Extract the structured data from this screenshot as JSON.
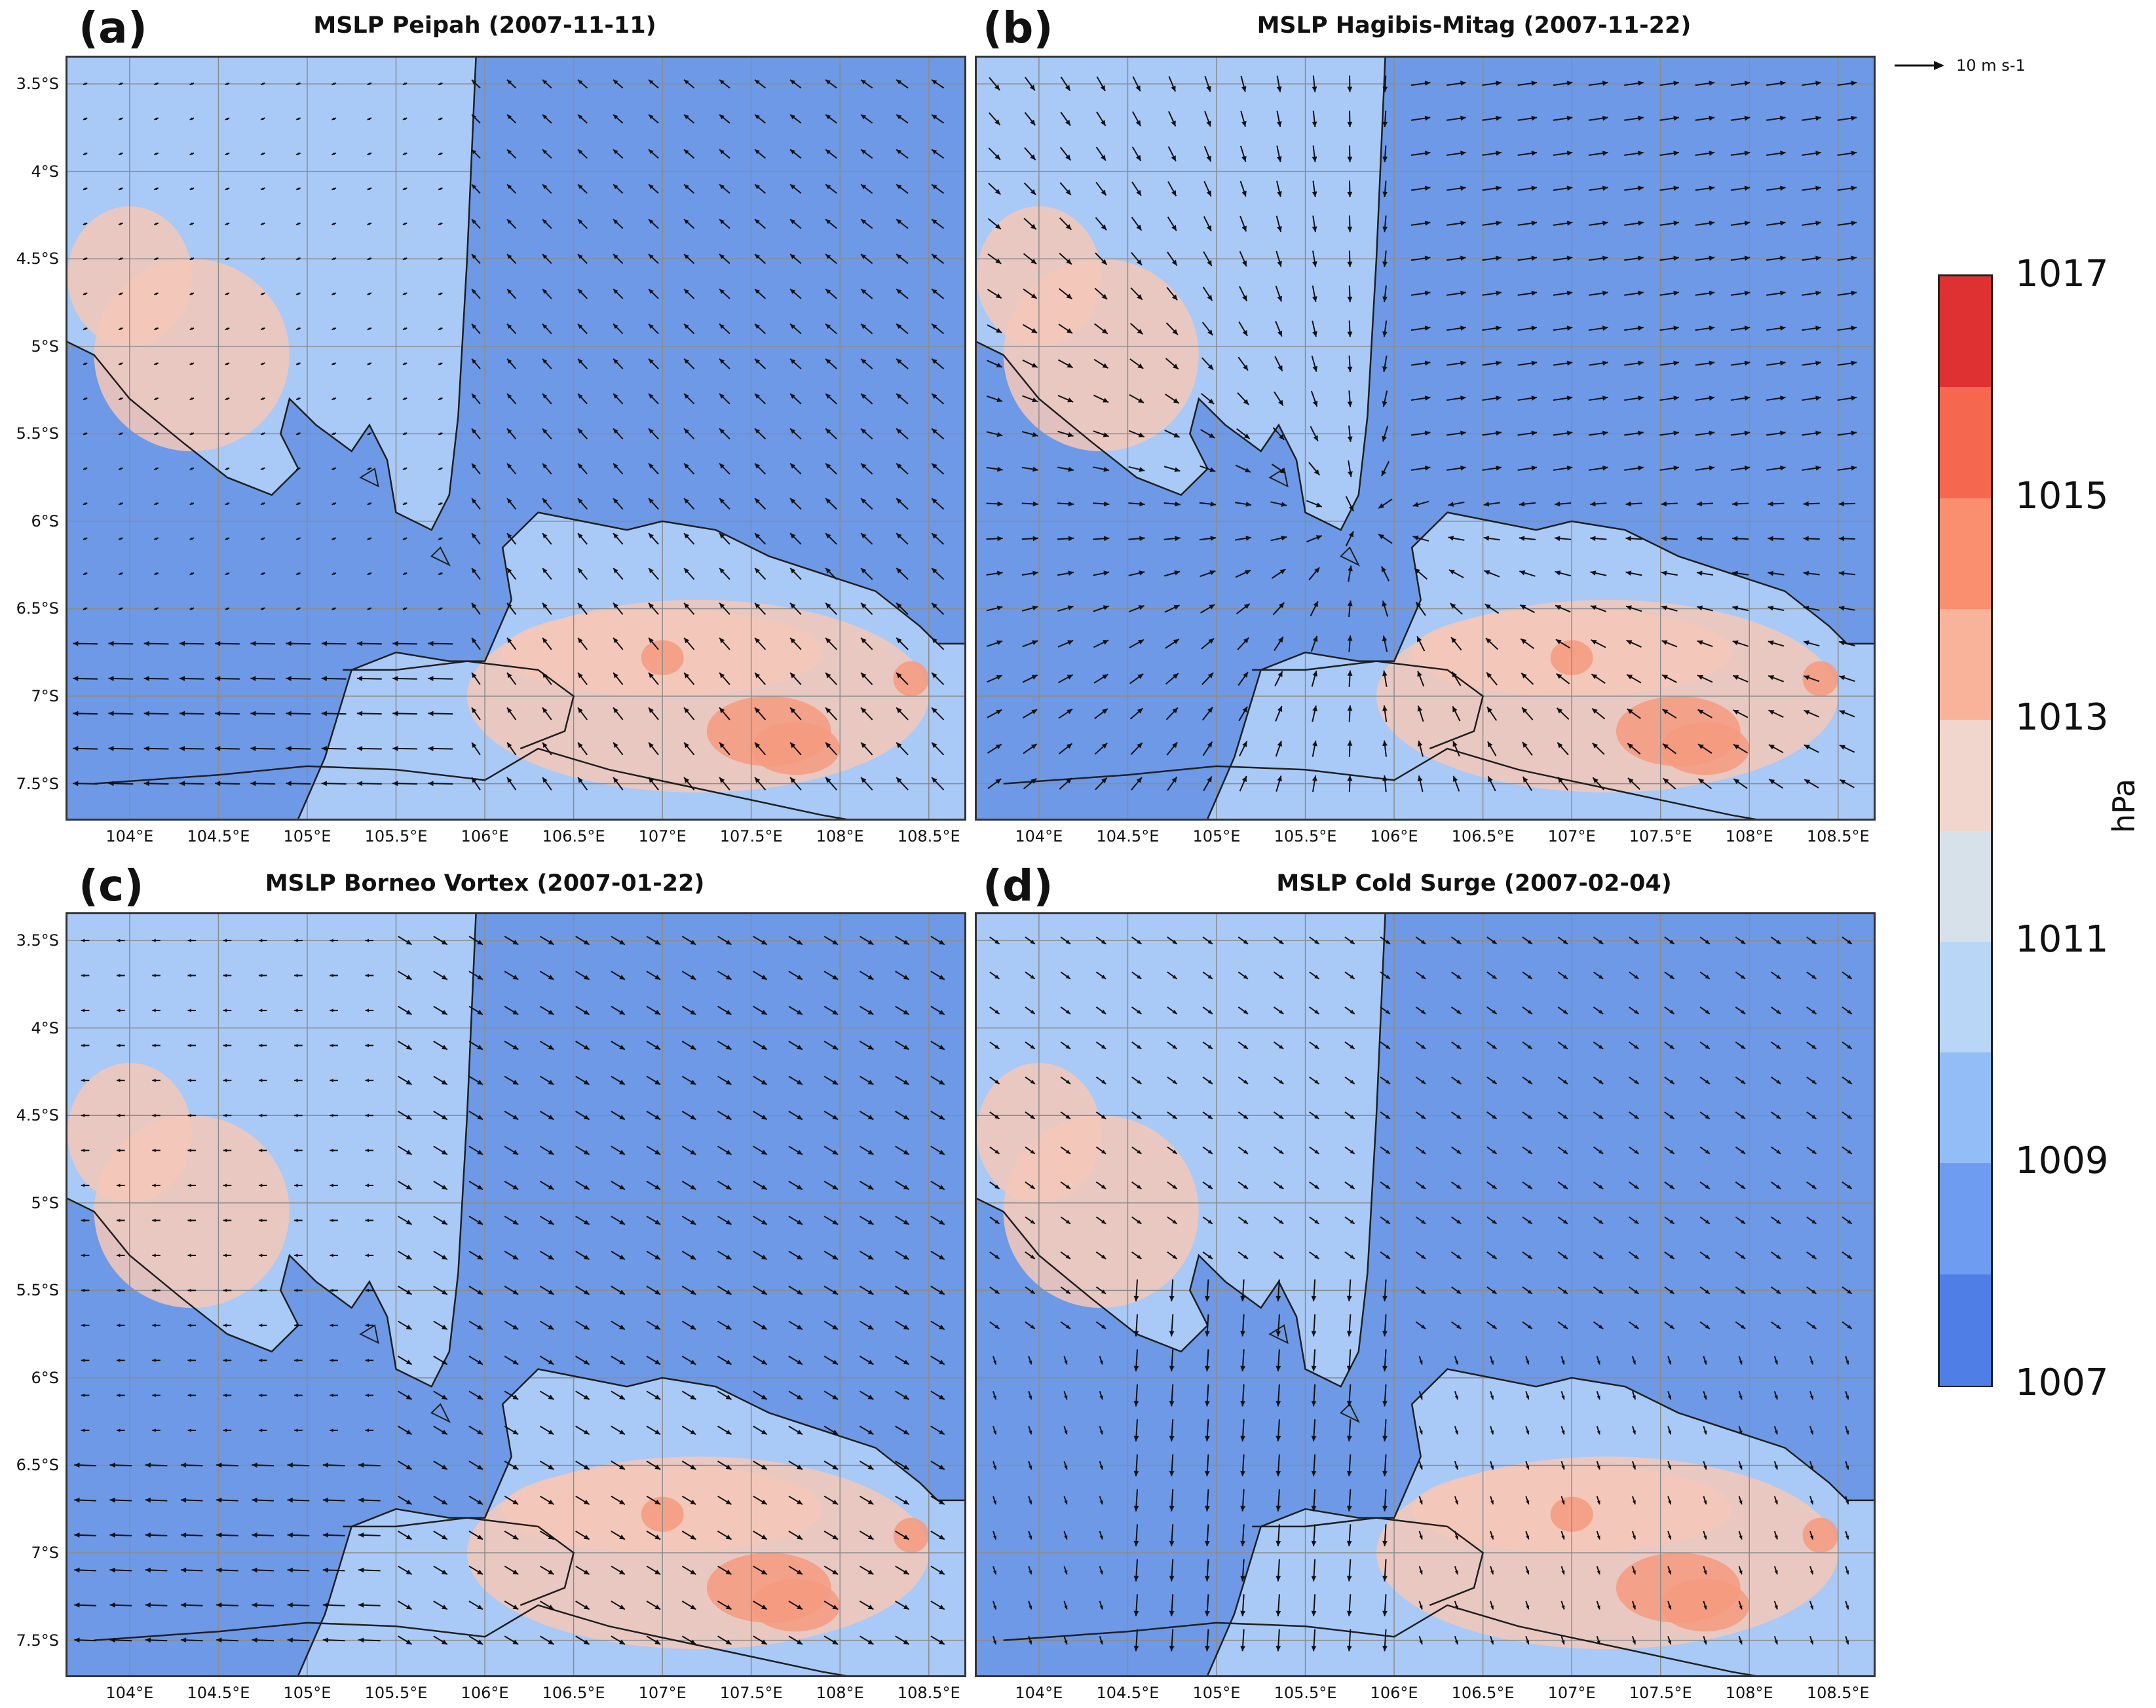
{
  "figure": {
    "panels": [
      {
        "id": "a",
        "label": "(a)",
        "title": "MSLP Peipah (2007-11-11)",
        "flow": "cyclonic-north"
      },
      {
        "id": "b",
        "label": "(b)",
        "title": "MSLP Hagibis-Mitag (2007-11-22)",
        "flow": "convergent"
      },
      {
        "id": "c",
        "label": "(c)",
        "title": "MSLP Borneo Vortex (2007-01-22)",
        "flow": "northwesterly"
      },
      {
        "id": "d",
        "label": "(d)",
        "title": "MSLP Cold Surge (2007-02-04)",
        "flow": "northerly-surge"
      }
    ],
    "lat_ticks": [
      "3.5°S",
      "4°S",
      "4.5°S",
      "5°S",
      "5.5°S",
      "6°S",
      "6.5°S",
      "7°S",
      "7.5°S"
    ],
    "lon_ticks": [
      "104°E",
      "104.5°E",
      "105°E",
      "105.5°E",
      "106°E",
      "106.5°E",
      "107°E",
      "107.5°E",
      "108°E",
      "108.5°E"
    ],
    "scale_reference": "10 m s-1",
    "colorbar": {
      "unit": "hPa",
      "tick_labels": [
        "1017",
        "1015",
        "1013",
        "1011",
        "1009",
        "1007"
      ],
      "range": [
        1007,
        1017
      ],
      "colors": [
        "#3a5fcd",
        "#4f7ee6",
        "#6e9cf0",
        "#93bdf7",
        "#b9d6f7",
        "#d7e1ea",
        "#f0d6cc",
        "#f9b39a",
        "#fa8f70",
        "#f5674f",
        "#e03132"
      ]
    },
    "map_colors": {
      "sea_base": "#6d99e6",
      "land_base": "#a9c9f6",
      "high_pressure": "#f4c8b8",
      "peak": "#f59a7e",
      "coastline": "#1f1f1f",
      "arrow": "#111111",
      "grid": "#8c8c8c"
    }
  }
}
